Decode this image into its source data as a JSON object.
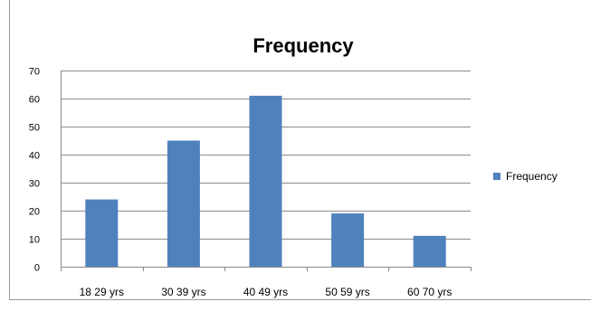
{
  "chart_data": {
    "type": "bar",
    "title": "Frequency",
    "xlabel": "",
    "ylabel": "",
    "categories": [
      "18 29 yrs",
      "30 39 yrs",
      "40 49 yrs",
      "50 59 yrs",
      "60 70 yrs"
    ],
    "series": [
      {
        "name": "Frequency",
        "values": [
          24,
          45,
          61,
          19,
          11
        ]
      }
    ],
    "ylim": [
      0,
      70
    ],
    "yticks": [
      0,
      10,
      20,
      30,
      40,
      50,
      60,
      70
    ],
    "grid": true,
    "legend": "right",
    "colors": {
      "bar": "#4F81BD",
      "grid": "#8C8C8C",
      "axis": "#8C8C8C",
      "text": "#000000"
    }
  }
}
